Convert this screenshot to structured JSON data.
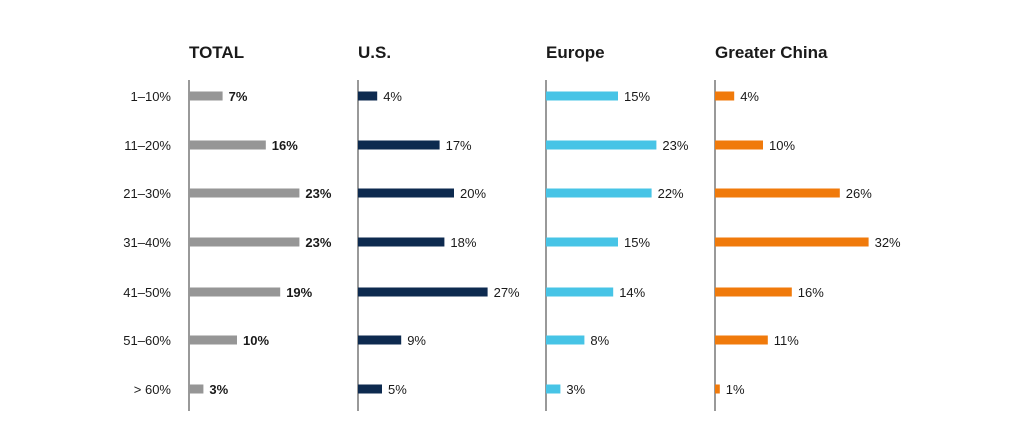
{
  "chart_data": {
    "type": "bar",
    "orientation": "horizontal",
    "categories": [
      "1–10%",
      "11–20%",
      "21–30%",
      "31–40%",
      "41–50%",
      "51–60%",
      "> 60%"
    ],
    "series": [
      {
        "name": "TOTAL",
        "values": [
          7,
          16,
          23,
          23,
          19,
          10,
          3
        ],
        "labels": [
          "7%",
          "16%",
          "23%",
          "23%",
          "19%",
          "10%",
          "3%"
        ],
        "color": "#969696",
        "label_bold": true
      },
      {
        "name": "U.S.",
        "values": [
          4,
          17,
          20,
          18,
          27,
          9,
          5
        ],
        "labels": [
          "4%",
          "17%",
          "20%",
          "18%",
          "27%",
          "9%",
          "5%"
        ],
        "color": "#0d2a4f",
        "label_bold": false
      },
      {
        "name": "Europe",
        "values": [
          15,
          23,
          22,
          15,
          14,
          8,
          3
        ],
        "labels": [
          "15%",
          "23%",
          "22%",
          "15%",
          "14%",
          "8%",
          "3%"
        ],
        "color": "#47c4e6",
        "label_bold": false
      },
      {
        "name": "Greater China",
        "values": [
          4,
          10,
          26,
          32,
          16,
          11,
          1
        ],
        "labels": [
          "4%",
          "10%",
          "26%",
          "32%",
          "16%",
          "11%",
          "1%"
        ],
        "color": "#f07a0b",
        "label_bold": false
      }
    ],
    "xlim": [
      0,
      32
    ],
    "grid": false,
    "legend": "none"
  }
}
